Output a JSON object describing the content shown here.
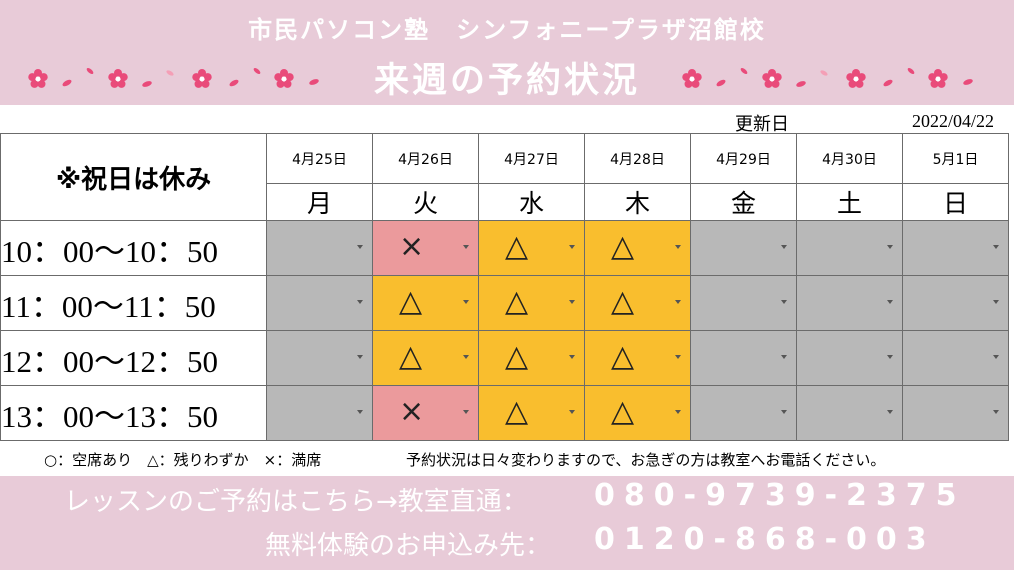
{
  "header": {
    "title_line1": "市民パソコン塾　シンフォニープラザ沼館校",
    "title_line2": "来週の予約状況"
  },
  "updated": {
    "label": "更新日",
    "date": "2022/04/22"
  },
  "table": {
    "corner_label": "※祝日は休み",
    "dates": [
      "4月25日",
      "4月26日",
      "4月27日",
      "4月28日",
      "4月29日",
      "4月30日",
      "5月1日"
    ],
    "weekdays": [
      "月",
      "火",
      "水",
      "木",
      "金",
      "土",
      "日"
    ],
    "rows": [
      {
        "time": "10：00～10：50",
        "cells": [
          {
            "symbol": "",
            "color": "#b8b8b8"
          },
          {
            "symbol": "×",
            "color": "#eb9a9c"
          },
          {
            "symbol": "△",
            "color": "#f9be2e"
          },
          {
            "symbol": "△",
            "color": "#f9be2e"
          },
          {
            "symbol": "",
            "color": "#b8b8b8"
          },
          {
            "symbol": "",
            "color": "#b8b8b8"
          },
          {
            "symbol": "",
            "color": "#b8b8b8"
          }
        ]
      },
      {
        "time": "11：00～11：50",
        "cells": [
          {
            "symbol": "",
            "color": "#b8b8b8"
          },
          {
            "symbol": "△",
            "color": "#f9be2e"
          },
          {
            "symbol": "△",
            "color": "#f9be2e"
          },
          {
            "symbol": "△",
            "color": "#f9be2e"
          },
          {
            "symbol": "",
            "color": "#b8b8b8"
          },
          {
            "symbol": "",
            "color": "#b8b8b8"
          },
          {
            "symbol": "",
            "color": "#b8b8b8"
          }
        ]
      },
      {
        "time": "12：00～12：50",
        "cells": [
          {
            "symbol": "",
            "color": "#b8b8b8"
          },
          {
            "symbol": "△",
            "color": "#f9be2e"
          },
          {
            "symbol": "△",
            "color": "#f9be2e"
          },
          {
            "symbol": "△",
            "color": "#f9be2e"
          },
          {
            "symbol": "",
            "color": "#b8b8b8"
          },
          {
            "symbol": "",
            "color": "#b8b8b8"
          },
          {
            "symbol": "",
            "color": "#b8b8b8"
          }
        ]
      },
      {
        "time": "13：00～13：50",
        "cells": [
          {
            "symbol": "",
            "color": "#b8b8b8"
          },
          {
            "symbol": "×",
            "color": "#eb9a9c"
          },
          {
            "symbol": "△",
            "color": "#f9be2e"
          },
          {
            "symbol": "△",
            "color": "#f9be2e"
          },
          {
            "symbol": "",
            "color": "#b8b8b8"
          },
          {
            "symbol": "",
            "color": "#b8b8b8"
          },
          {
            "symbol": "",
            "color": "#b8b8b8"
          }
        ]
      }
    ]
  },
  "legend": "○：空席あり　△：残りわずか　×：満席",
  "note": "予約状況は日々変わりますので、お急ぎの方は教室へお電話ください。",
  "footer": {
    "line1_label": "レッスンのご予約はこちら→教室直通：",
    "line1_number": "080-9739-2375",
    "line2_label": "無料体験のお申込み先：",
    "line2_number": "0120-868-003"
  },
  "colors": {
    "banner_pink": "#e8cbd8",
    "available_few": "#f9be2e",
    "full": "#eb9a9c",
    "closed": "#b8b8b8",
    "flower": "#e94b7a"
  },
  "icons": [
    "cherry-blossom-icon",
    "dropdown-arrow-icon"
  ]
}
